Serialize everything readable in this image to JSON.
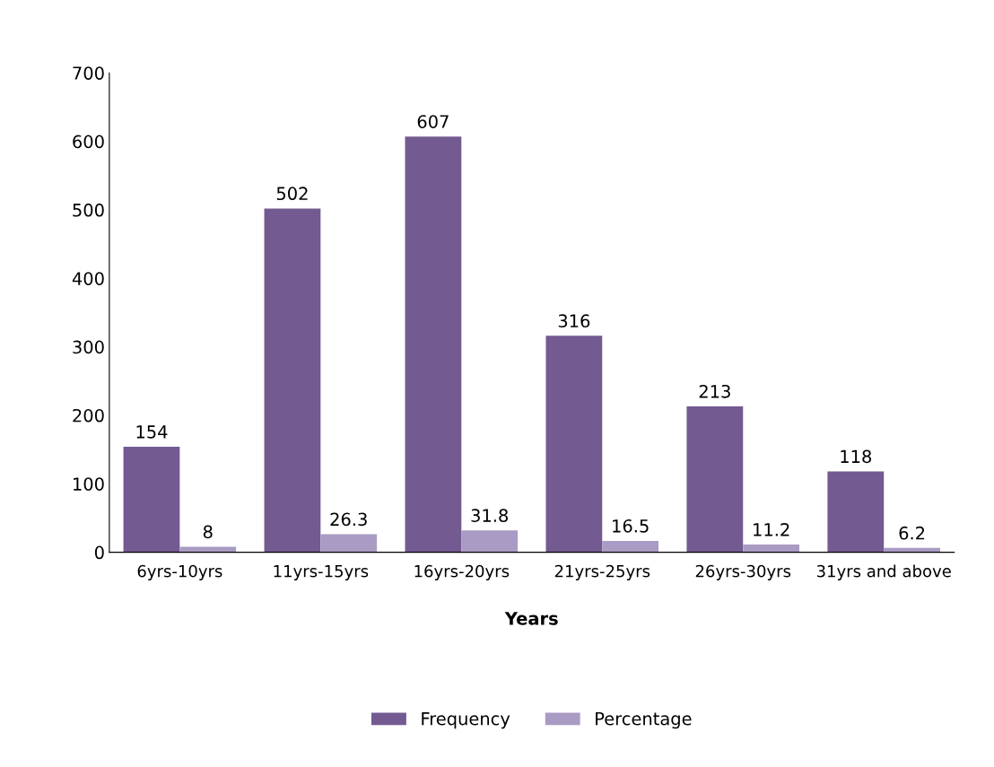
{
  "chart_data": {
    "type": "bar",
    "xlabel": "Years",
    "categories": [
      "6yrs-10yrs",
      "11yrs-15yrs",
      "16yrs-20yrs",
      "21yrs-25yrs",
      "26yrs-30yrs",
      "31yrs and above"
    ],
    "series": [
      {
        "name": "Frequency",
        "color": "#735a91",
        "values": [
          154,
          502,
          607,
          316,
          213,
          118
        ]
      },
      {
        "name": "Percentage",
        "color": "#a99bc3",
        "values": [
          8,
          26.3,
          31.8,
          16.5,
          11.2,
          6.2
        ]
      }
    ],
    "ylim": [
      0,
      700
    ],
    "yticks": [
      0,
      100,
      200,
      300,
      400,
      500,
      600,
      700
    ],
    "grid": false,
    "legend": "bottom",
    "data_labels": true
  }
}
